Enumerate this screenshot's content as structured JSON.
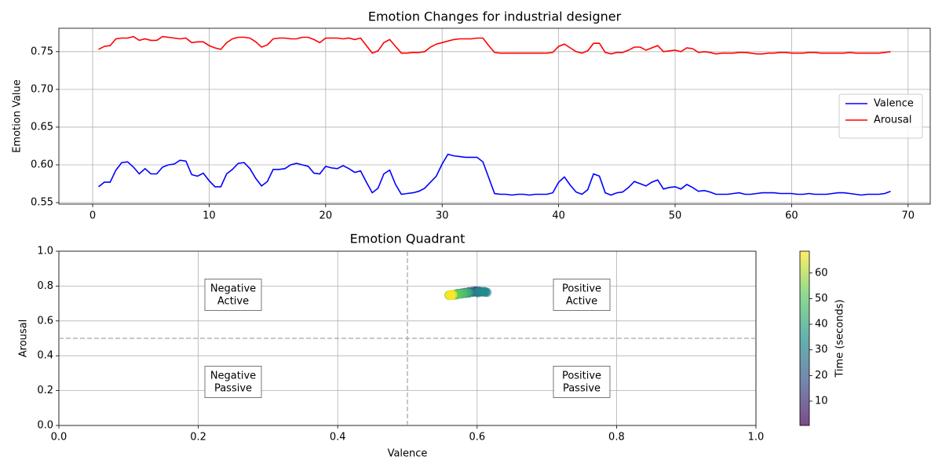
{
  "chart_data": [
    {
      "type": "line",
      "title": "Emotion Changes for industrial designer",
      "ylabel": "Emotion Value",
      "x": [
        0.5,
        1,
        1.5,
        2,
        2.5,
        3,
        3.5,
        4,
        4.5,
        5,
        5.5,
        6,
        6.5,
        7,
        7.5,
        8,
        8.5,
        9,
        9.5,
        10,
        10.5,
        11,
        11.5,
        12,
        12.5,
        13,
        13.5,
        14,
        14.5,
        15,
        15.5,
        16,
        16.5,
        17,
        17.5,
        18,
        18.5,
        19,
        19.5,
        20,
        20.5,
        21,
        21.5,
        22,
        22.5,
        23,
        23.5,
        24,
        24.5,
        25,
        25.5,
        26,
        26.5,
        27,
        27.5,
        28,
        28.5,
        29,
        29.5,
        30,
        30.5,
        31,
        31.5,
        32,
        32.5,
        33,
        33.5,
        34,
        34.5,
        35,
        35.5,
        36,
        36.5,
        37,
        37.5,
        38,
        38.5,
        39,
        39.5,
        40,
        40.5,
        41,
        41.5,
        42,
        42.5,
        43,
        43.5,
        44,
        44.5,
        45,
        45.5,
        46,
        46.5,
        47,
        47.5,
        48,
        48.5,
        49,
        49.5,
        50,
        50.5,
        51,
        51.5,
        52,
        52.5,
        53,
        53.5,
        54,
        54.5,
        55,
        55.5,
        56,
        56.5,
        57,
        57.5,
        58,
        58.5,
        59,
        59.5,
        60,
        60.5,
        61,
        61.5,
        62,
        62.5,
        63,
        63.5,
        64,
        64.5,
        65,
        65.5,
        66,
        66.5,
        67,
        67.5,
        68,
        68.5
      ],
      "series": [
        {
          "name": "Valence",
          "color": "#0000ff",
          "values": [
            0.571,
            0.577,
            0.577,
            0.593,
            0.603,
            0.604,
            0.597,
            0.588,
            0.595,
            0.588,
            0.588,
            0.597,
            0.6,
            0.601,
            0.606,
            0.605,
            0.587,
            0.585,
            0.589,
            0.579,
            0.571,
            0.571,
            0.588,
            0.594,
            0.602,
            0.603,
            0.595,
            0.582,
            0.572,
            0.578,
            0.594,
            0.594,
            0.595,
            0.6,
            0.602,
            0.6,
            0.598,
            0.589,
            0.588,
            0.598,
            0.596,
            0.595,
            0.599,
            0.595,
            0.59,
            0.592,
            0.577,
            0.563,
            0.569,
            0.588,
            0.593,
            0.574,
            0.561,
            0.562,
            0.563,
            0.565,
            0.569,
            0.577,
            0.585,
            0.601,
            0.614,
            0.612,
            0.611,
            0.61,
            0.61,
            0.61,
            0.604,
            0.583,
            0.562,
            0.561,
            0.561,
            0.56,
            0.561,
            0.561,
            0.56,
            0.561,
            0.561,
            0.561,
            0.563,
            0.577,
            0.584,
            0.573,
            0.564,
            0.561,
            0.567,
            0.588,
            0.585,
            0.563,
            0.56,
            0.563,
            0.564,
            0.57,
            0.578,
            0.575,
            0.572,
            0.577,
            0.58,
            0.568,
            0.57,
            0.571,
            0.568,
            0.574,
            0.57,
            0.565,
            0.566,
            0.564,
            0.561,
            0.561,
            0.561,
            0.562,
            0.563,
            0.561,
            0.561,
            0.562,
            0.563,
            0.563,
            0.563,
            0.562,
            0.562,
            0.562,
            0.561,
            0.561,
            0.562,
            0.561,
            0.561,
            0.561,
            0.562,
            0.563,
            0.563,
            0.562,
            0.561,
            0.56,
            0.561,
            0.561,
            0.561,
            0.562,
            0.565
          ]
        },
        {
          "name": "Arousal",
          "color": "#ff0000",
          "values": [
            0.753,
            0.757,
            0.758,
            0.767,
            0.768,
            0.768,
            0.77,
            0.765,
            0.767,
            0.765,
            0.765,
            0.77,
            0.769,
            0.768,
            0.767,
            0.768,
            0.762,
            0.763,
            0.763,
            0.758,
            0.755,
            0.753,
            0.762,
            0.767,
            0.769,
            0.769,
            0.768,
            0.763,
            0.756,
            0.759,
            0.767,
            0.768,
            0.768,
            0.767,
            0.767,
            0.769,
            0.769,
            0.766,
            0.762,
            0.768,
            0.768,
            0.768,
            0.767,
            0.768,
            0.766,
            0.768,
            0.758,
            0.748,
            0.751,
            0.762,
            0.766,
            0.757,
            0.748,
            0.748,
            0.749,
            0.749,
            0.75,
            0.756,
            0.76,
            0.762,
            0.764,
            0.766,
            0.767,
            0.767,
            0.767,
            0.768,
            0.768,
            0.758,
            0.749,
            0.748,
            0.748,
            0.748,
            0.748,
            0.748,
            0.748,
            0.748,
            0.748,
            0.748,
            0.749,
            0.757,
            0.76,
            0.755,
            0.75,
            0.748,
            0.751,
            0.761,
            0.761,
            0.749,
            0.747,
            0.749,
            0.749,
            0.752,
            0.756,
            0.756,
            0.752,
            0.755,
            0.758,
            0.75,
            0.751,
            0.752,
            0.75,
            0.755,
            0.754,
            0.749,
            0.75,
            0.749,
            0.747,
            0.748,
            0.748,
            0.748,
            0.749,
            0.749,
            0.748,
            0.747,
            0.747,
            0.748,
            0.748,
            0.749,
            0.749,
            0.748,
            0.748,
            0.748,
            0.749,
            0.749,
            0.748,
            0.748,
            0.748,
            0.748,
            0.748,
            0.749,
            0.748,
            0.748,
            0.748,
            0.748,
            0.748,
            0.749,
            0.75
          ]
        }
      ],
      "xlim": [
        -2.9,
        71.9
      ],
      "xticks": [
        0,
        10,
        20,
        30,
        40,
        50,
        60,
        70
      ],
      "ylim": [
        0.548,
        0.781
      ],
      "yticks": [
        {
          "value": 0.55,
          "label": "0.55"
        },
        {
          "value": 0.6,
          "label": "0.60"
        },
        {
          "value": 0.65,
          "label": "0.65"
        },
        {
          "value": 0.7,
          "label": "0.70"
        },
        {
          "value": 0.75,
          "label": "0.75"
        }
      ],
      "grid": true,
      "legend": "center right"
    },
    {
      "type": "scatter",
      "title": "Emotion Quadrant",
      "xlabel": "Valence",
      "ylabel": "Arousal",
      "xlim": [
        0,
        1
      ],
      "ylim": [
        0,
        1
      ],
      "xticks": [
        {
          "value": 0,
          "label": "0.0"
        },
        0.2,
        0.4,
        0.6,
        0.8,
        {
          "value": 1,
          "label": "1.0"
        }
      ],
      "yticks": [
        {
          "value": 0,
          "label": "0.0"
        },
        0.2,
        0.4,
        0.6,
        0.8,
        {
          "value": 1,
          "label": "1.0"
        }
      ],
      "divider_x": 0.5,
      "divider_y": 0.5,
      "quadrants": [
        "Negative\nActive",
        "Positive\nActive",
        "Negative\nPassive",
        "Positive\nPassive"
      ],
      "colorbar_label": "Time (seconds)",
      "clim": [
        0.5,
        68.5
      ],
      "cticks": [
        10,
        20,
        30,
        40,
        50,
        60
      ],
      "colormap": "viridis",
      "grid": true
    }
  ]
}
